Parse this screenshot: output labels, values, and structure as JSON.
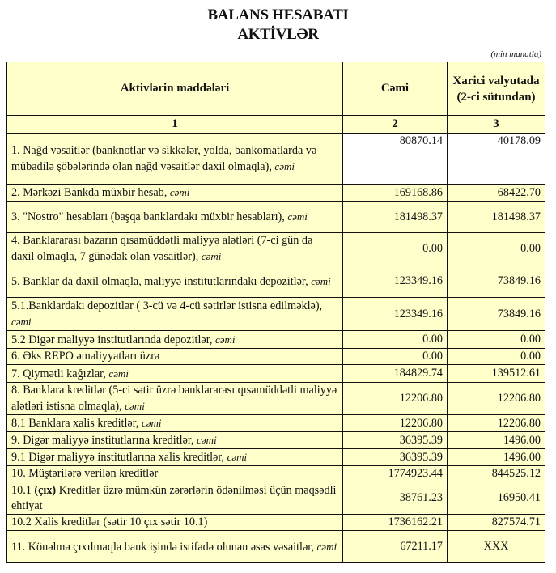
{
  "title": "BALANS HESABATI",
  "subtitle": "AKTİVLƏR",
  "unit": "(min  manatla)",
  "headers": {
    "col1": "Aktivlərin   maddələri",
    "col2": "Cəmi",
    "col3": "Xarici valyutada (2-ci sütundan)"
  },
  "col_numbers": [
    "1",
    "2",
    "3"
  ],
  "background_color": "#ffffcc",
  "rows": [
    {
      "text": "1. Nağd vəsaitlər  (banknotlar və sikkələr, yolda, bankomatlarda və mübadilə şöbələrində olan nağd vəsaitlər daxil olmaqla), ",
      "italic": "cəmi",
      "total": "80870.14",
      "foreign": "40178.09"
    },
    {
      "text": "2. Mərkəzi Bankda müxbir hesab, ",
      "italic": "cəmi",
      "total": "169168.86",
      "foreign": "68422.70"
    },
    {
      "text": "3. \"Nostro\" hesabları (başqa banklardakı müxbir hesabları), ",
      "italic": "cəmi",
      "total": "181498.37",
      "foreign": "181498.37"
    },
    {
      "text": "4. Banklararası bazarın qısamüddətli maliyyə alətləri  (7-ci gün də daxil olmaqla, 7 günədək olan vəsaitlər),  ",
      "italic": "cəmi",
      "total": "0.00",
      "foreign": "0.00"
    },
    {
      "text": "5. Banklar da daxil olmaqla, maliyyə institutlarındakı depozitlər, ",
      "italic": "cəmi",
      "total": "123349.16",
      "foreign": "73849.16"
    },
    {
      "text": "5.1.Banklardakı depozitlər ( 3-cü və 4-cü sətirlər istisna edilməklə), ",
      "italic": "cəmi",
      "total": "123349.16",
      "foreign": "73849.16"
    },
    {
      "text": "5.2 Digər maliyyə institutlarında depozitlər, ",
      "italic": "cəmi",
      "total": "0.00",
      "foreign": "0.00"
    },
    {
      "text": "6. Əks REPO əməliyyatları  üzrə",
      "total": "0.00",
      "foreign": "0.00"
    },
    {
      "text": "7. Qiymətli kağızlar, ",
      "italic": "cəmi",
      "total": "184829.74",
      "foreign": "139512.61"
    },
    {
      "text": "8. Banklara kreditlər (5-ci sətir üzrə banklararası qısamüddətli maliyyə alətləri  istisna olmaqla), ",
      "italic": "cəmi",
      "total": "12206.80",
      "foreign": "12206.80"
    },
    {
      "text": "8.1 Banklara xalis kreditlər, ",
      "italic": "cəmi",
      "total": "12206.80",
      "foreign": "12206.80"
    },
    {
      "text": "9. Digər maliyyə institutlarına kreditlər, ",
      "italic": "cəmi",
      "total": "36395.39",
      "foreign": "1496.00"
    },
    {
      "text": "9.1 Digər maliyyə institutlarına xalis kreditlər, ",
      "italic": "cəmi",
      "total": "36395.39",
      "foreign": "1496.00"
    },
    {
      "text": "10. Müştərilərə verilən kreditlər",
      "total": "1774923.44",
      "foreign": "844525.12"
    },
    {
      "prefix": "10.1 ",
      "bold": "(çıx)",
      "text": " Kreditlər üzrə mümkün zərərlərin ödənilməsi üçün məqsədli ehtiyat",
      "total": "38761.23",
      "foreign": "16950.41"
    },
    {
      "text": "10.2 Xalis kreditlər (sətir 10 çıx sətir 10.1)",
      "total": "1736162.21",
      "foreign": "827574.71"
    },
    {
      "text": "11. Könəlmə çıxılmaqla bank işində istifadə olunan əsas vəsaitlər,  ",
      "italic": "cəmi",
      "total": "67211.17",
      "foreign": "XXX"
    }
  ]
}
